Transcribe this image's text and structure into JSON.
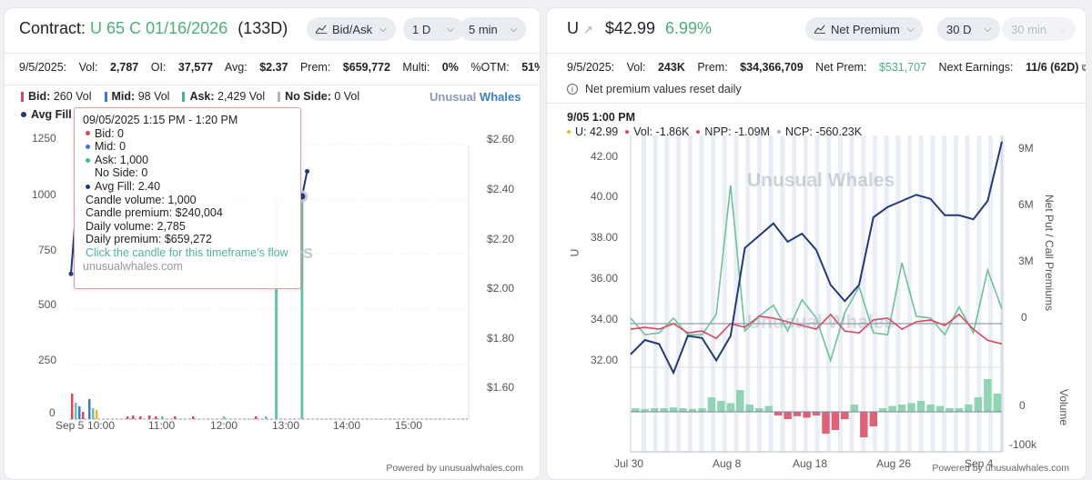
{
  "left": {
    "title_prefix": "Contract:",
    "contract": "U 65 C 01/16/2026",
    "dte": "(133D)",
    "toggles": [
      {
        "label": "Bid/Ask",
        "icon": "line-chart-icon"
      },
      {
        "label": "1 D"
      },
      {
        "label": "5 min"
      }
    ],
    "stats": {
      "date": "9/5/2025:",
      "vol_label": "Vol:",
      "vol": "2,787",
      "oi_label": "OI:",
      "oi": "37,577",
      "avg_label": "Avg:",
      "avg": "$2.37",
      "prem_label": "Prem:",
      "prem": "$659,772",
      "multi_label": "Multi:",
      "multi": "0%",
      "otm_label": "%OTM:",
      "otm": "51%"
    },
    "legend": [
      {
        "label": "Bid:",
        "value": "260 Vol",
        "color": "#d9485f"
      },
      {
        "label": "Mid:",
        "value": "98 Vol",
        "color": "#3a78d8"
      },
      {
        "label": "Ask:",
        "value": "2,429 Vol",
        "color": "#4fb38a"
      },
      {
        "label": "No Side:",
        "value": "0 Vol",
        "color": "#b0b6bf"
      }
    ],
    "avg_fill_label": "Avg Fill",
    "brand_a": "Unusual",
    "brand_b": "Whales",
    "y_left_ticks": [
      "1250",
      "1000",
      "750",
      "500",
      "250",
      "0"
    ],
    "y_right_ticks": [
      "$2.60",
      "$2.40",
      "$2.20",
      "$2.00",
      "$1.80",
      "$1.60"
    ],
    "x_ticks": [
      "Sep 5",
      "10:00",
      "11:00",
      "12:00",
      "13:00",
      "14:00",
      "15:00"
    ],
    "watermark": "hales",
    "tooltip": {
      "time": "09/05/2025 1:15 PM  -  1:20 PM",
      "bid": "Bid: 0",
      "mid": "Mid: 0",
      "ask": "Ask: 1,000",
      "noside": "No Side: 0",
      "avgfill": "Avg Fill: 2.40",
      "candle_volume": "Candle volume: 1,000",
      "candle_premium": "Candle premium: $240,004",
      "daily_volume": "Daily volume: 2,785",
      "daily_premium": "Daily premium: $659,272",
      "link": "Click the candle for this timeframe's flow",
      "source": "unusualwhales.com"
    },
    "chart_data": {
      "type": "bar",
      "ylim_volume": [
        0,
        1250
      ],
      "ylim_price": [
        1.5,
        2.65
      ],
      "ask_bars": [
        {
          "time": "12:50",
          "value": 1000
        },
        {
          "time": "13:15",
          "value": 1000
        }
      ],
      "avg_fill_line": [
        {
          "time": "09:30",
          "value": 2.09
        },
        {
          "time": "09:35",
          "value": 2.35
        },
        {
          "time": "13:15",
          "value": 2.4
        },
        {
          "time": "13:20",
          "value": 2.5
        }
      ]
    },
    "powered": "Powered by unusualwhales.com"
  },
  "right": {
    "ticker": "U",
    "price": "$42.99",
    "change": "6.99%",
    "toggles": [
      {
        "label": "Net Premium",
        "icon": "line-chart-icon"
      },
      {
        "label": "30 D"
      },
      {
        "label": "30 min",
        "disabled": true
      }
    ],
    "stats": {
      "date": "9/5/2025:",
      "vol_label": "Vol:",
      "vol": "243K",
      "prem_label": "Prem:",
      "prem": "$34,366,709",
      "netprem_label": "Net Prem:",
      "netprem": "$531,707",
      "earn_label": "Next Earnings:",
      "earn": "11/6 (62D)"
    },
    "info": "Net premium values reset daily",
    "legend_time": "9/05 1:00 PM",
    "legend_items": [
      {
        "text": "U: 42.99",
        "color": "#f2b134"
      },
      {
        "text": "Vol: -1.86K",
        "color": "#d9485f"
      },
      {
        "text": "NPP: -1.09M",
        "color": "#d9485f"
      },
      {
        "text": "NCP: -560.23K",
        "color": "#aab2bd"
      }
    ],
    "y_left_label": "U",
    "y_left_ticks": [
      "42.00",
      "40.00",
      "38.00",
      "36.00",
      "34.00",
      "32.00"
    ],
    "y_right_label": "Net Put / Call Premiums",
    "y_right_ticks": [
      "9M",
      "6M",
      "3M",
      "0"
    ],
    "vol_label": "Volume",
    "vol_ticks": [
      "0",
      "-100k"
    ],
    "x_ticks": [
      "Jul 30",
      "Aug 8",
      "Aug 18",
      "Aug 26",
      "Sep 4"
    ],
    "watermark_a": "Unusual Whales",
    "watermark_b": "Unusual Whales",
    "chart_data": {
      "type": "line",
      "x": [
        "Jul 30",
        "Jul 31",
        "Aug 1",
        "Aug 4",
        "Aug 5",
        "Aug 6",
        "Aug 7",
        "Aug 8",
        "Aug 11",
        "Aug 12",
        "Aug 13",
        "Aug 14",
        "Aug 15",
        "Aug 18",
        "Aug 19",
        "Aug 20",
        "Aug 21",
        "Aug 22",
        "Aug 25",
        "Aug 26",
        "Aug 27",
        "Aug 28",
        "Aug 29",
        "Sep 2",
        "Sep 3",
        "Sep 4",
        "Sep 5"
      ],
      "series": [
        {
          "name": "U",
          "values": [
            32.5,
            33.2,
            33.0,
            31.6,
            33.4,
            33.3,
            32.2,
            33.4,
            37.7,
            38.3,
            38.9,
            38.0,
            38.4,
            37.6,
            35.9,
            35.1,
            35.9,
            39.2,
            39.7,
            40.0,
            40.3,
            40.1,
            39.3,
            39.3,
            39.1,
            40.0,
            42.9
          ]
        },
        {
          "name": "NPP",
          "values": [
            -0.3,
            -0.2,
            -0.3,
            0,
            -0.5,
            -0.4,
            -0.8,
            0,
            -0.2,
            0.4,
            0.3,
            0.1,
            -0.1,
            -0.3,
            0.5,
            -0.4,
            -0.5,
            0.2,
            0.3,
            -0.3,
            0.1,
            0.2,
            -0.1,
            0.5,
            -0.3,
            -0.9,
            -1.1
          ]
        },
        {
          "name": "NCP",
          "values": [
            0.3,
            -0.6,
            -0.5,
            0.3,
            -0.6,
            -0.6,
            0.5,
            7.5,
            -0.4,
            0.4,
            1.0,
            -0.4,
            1.3,
            0.3,
            -2.0,
            0.6,
            2.0,
            -0.5,
            -0.6,
            3.3,
            0.4,
            0.3,
            -0.6,
            0.9,
            -0.5,
            2.9,
            0.8
          ]
        }
      ],
      "ylim_u": [
        31.0,
        43.0
      ],
      "ylim_premium": [
        -3,
        10
      ]
    },
    "volume_bars": [
      0.05,
      0.04,
      0.05,
      0.05,
      0.06,
      0.05,
      0.04,
      0.05,
      0.2,
      0.15,
      0.12,
      0.3,
      0.1,
      0.05,
      0.08,
      -0.05,
      -0.1,
      -0.06,
      -0.08,
      -0.05,
      -0.3,
      -0.25,
      -0.1,
      0.1,
      -0.35,
      -0.2,
      0.05,
      0.08,
      0.1,
      0.12,
      0.15,
      0.1,
      0.08,
      0.05,
      0.05,
      0.1,
      0.2,
      0.45,
      0.25
    ],
    "powered": "Powered by unusualwhales.com"
  }
}
